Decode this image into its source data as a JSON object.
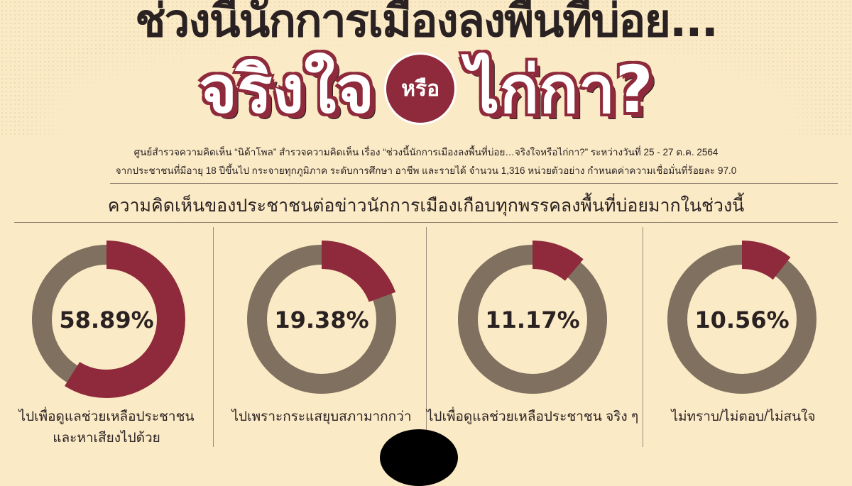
{
  "header": {
    "title_line1": "ช่วงนี้นักการเมืองลงพื้นที่บ่อย...",
    "title_word1": "จริงใจ",
    "title_or": "หรือ",
    "title_word2": "ไก่กา?"
  },
  "source": {
    "line1": "ศูนย์สำรวจความคิดเห็น “นิด้าโพล” สำรวจความคิดเห็น เรื่อง “ช่วงนี้นักการเมืองลงพื้นที่บ่อย…จริงใจหรือไก่กา?” ระหว่างวันที่ 25 - 27 ต.ค. 2564",
    "line2": "จากประชาชนที่มีอายุ 18 ปีขึ้นไป กระจายทุกภูมิภาค ระดับการศึกษา อาชีพ และรายได้ จำนวน 1,316 หน่วยตัวอย่าง กำหนดค่าความเชื่อมั่นที่ร้อยละ 97.0"
  },
  "chart_data": {
    "type": "pie",
    "title": "ความคิดเห็นของประชาชนต่อข่าวนักการเมืองเกือบทุกพรรคลงพื้นที่บ่อยมากในช่วงนี้",
    "unit": "%",
    "categories": [
      "ไปเพื่อดูแลช่วยเหลือประชาชน และหาเสียงไปด้วย",
      "ไปเพราะกระแสยุบสภามากกว่า",
      "ไปเพื่อดูแลช่วยเหลือประชาชน จริง ๆ",
      "ไม่ทราบ/ไม่ตอบ/ไม่สนใจ"
    ],
    "labels_line1": [
      "ไปเพื่อดูแลช่วยเหลือประชาชน",
      "ไปเพราะกระแสยุบสภามากกว่า",
      "ไปเพื่อดูแลช่วยเหลือประชาชน จริง ๆ",
      "ไม่ทราบ/ไม่ตอบ/ไม่สนใจ"
    ],
    "labels_line2": [
      "และหาเสียงไปด้วย",
      "",
      "",
      ""
    ],
    "values": [
      58.89,
      19.38,
      11.17,
      10.56
    ],
    "value_labels": [
      "58.89%",
      "19.38%",
      "11.17%",
      "10.56%"
    ],
    "colors": {
      "value": "#8e2a3b",
      "remainder": "#80705f"
    }
  }
}
